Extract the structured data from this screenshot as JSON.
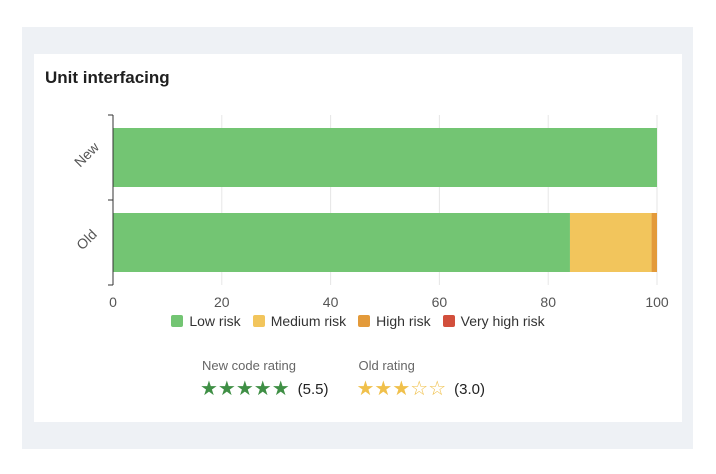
{
  "chart_data": {
    "type": "bar",
    "orientation": "horizontal",
    "stacked": true,
    "title": "Unit interfacing",
    "categories": [
      "New",
      "Old"
    ],
    "xlim": [
      0,
      100
    ],
    "xticks": [
      0,
      20,
      40,
      60,
      80,
      100
    ],
    "grid": true,
    "legend_position": "bottom",
    "series": [
      {
        "name": "Low risk",
        "color": "#73c573",
        "values": [
          100,
          84
        ]
      },
      {
        "name": "Medium risk",
        "color": "#f2c55c",
        "values": [
          0,
          15
        ]
      },
      {
        "name": "High risk",
        "color": "#e39a3a",
        "values": [
          0,
          1
        ]
      },
      {
        "name": "Very high risk",
        "color": "#d24f3c",
        "values": [
          0,
          0
        ]
      }
    ]
  },
  "ratings": [
    {
      "label": "New code rating",
      "stars": "★★★★★",
      "value": "(5.5)",
      "color": "#3f8f45"
    },
    {
      "label": "Old rating",
      "stars": "★★★☆☆",
      "value": "(3.0)",
      "color": "#f0c04b"
    }
  ]
}
